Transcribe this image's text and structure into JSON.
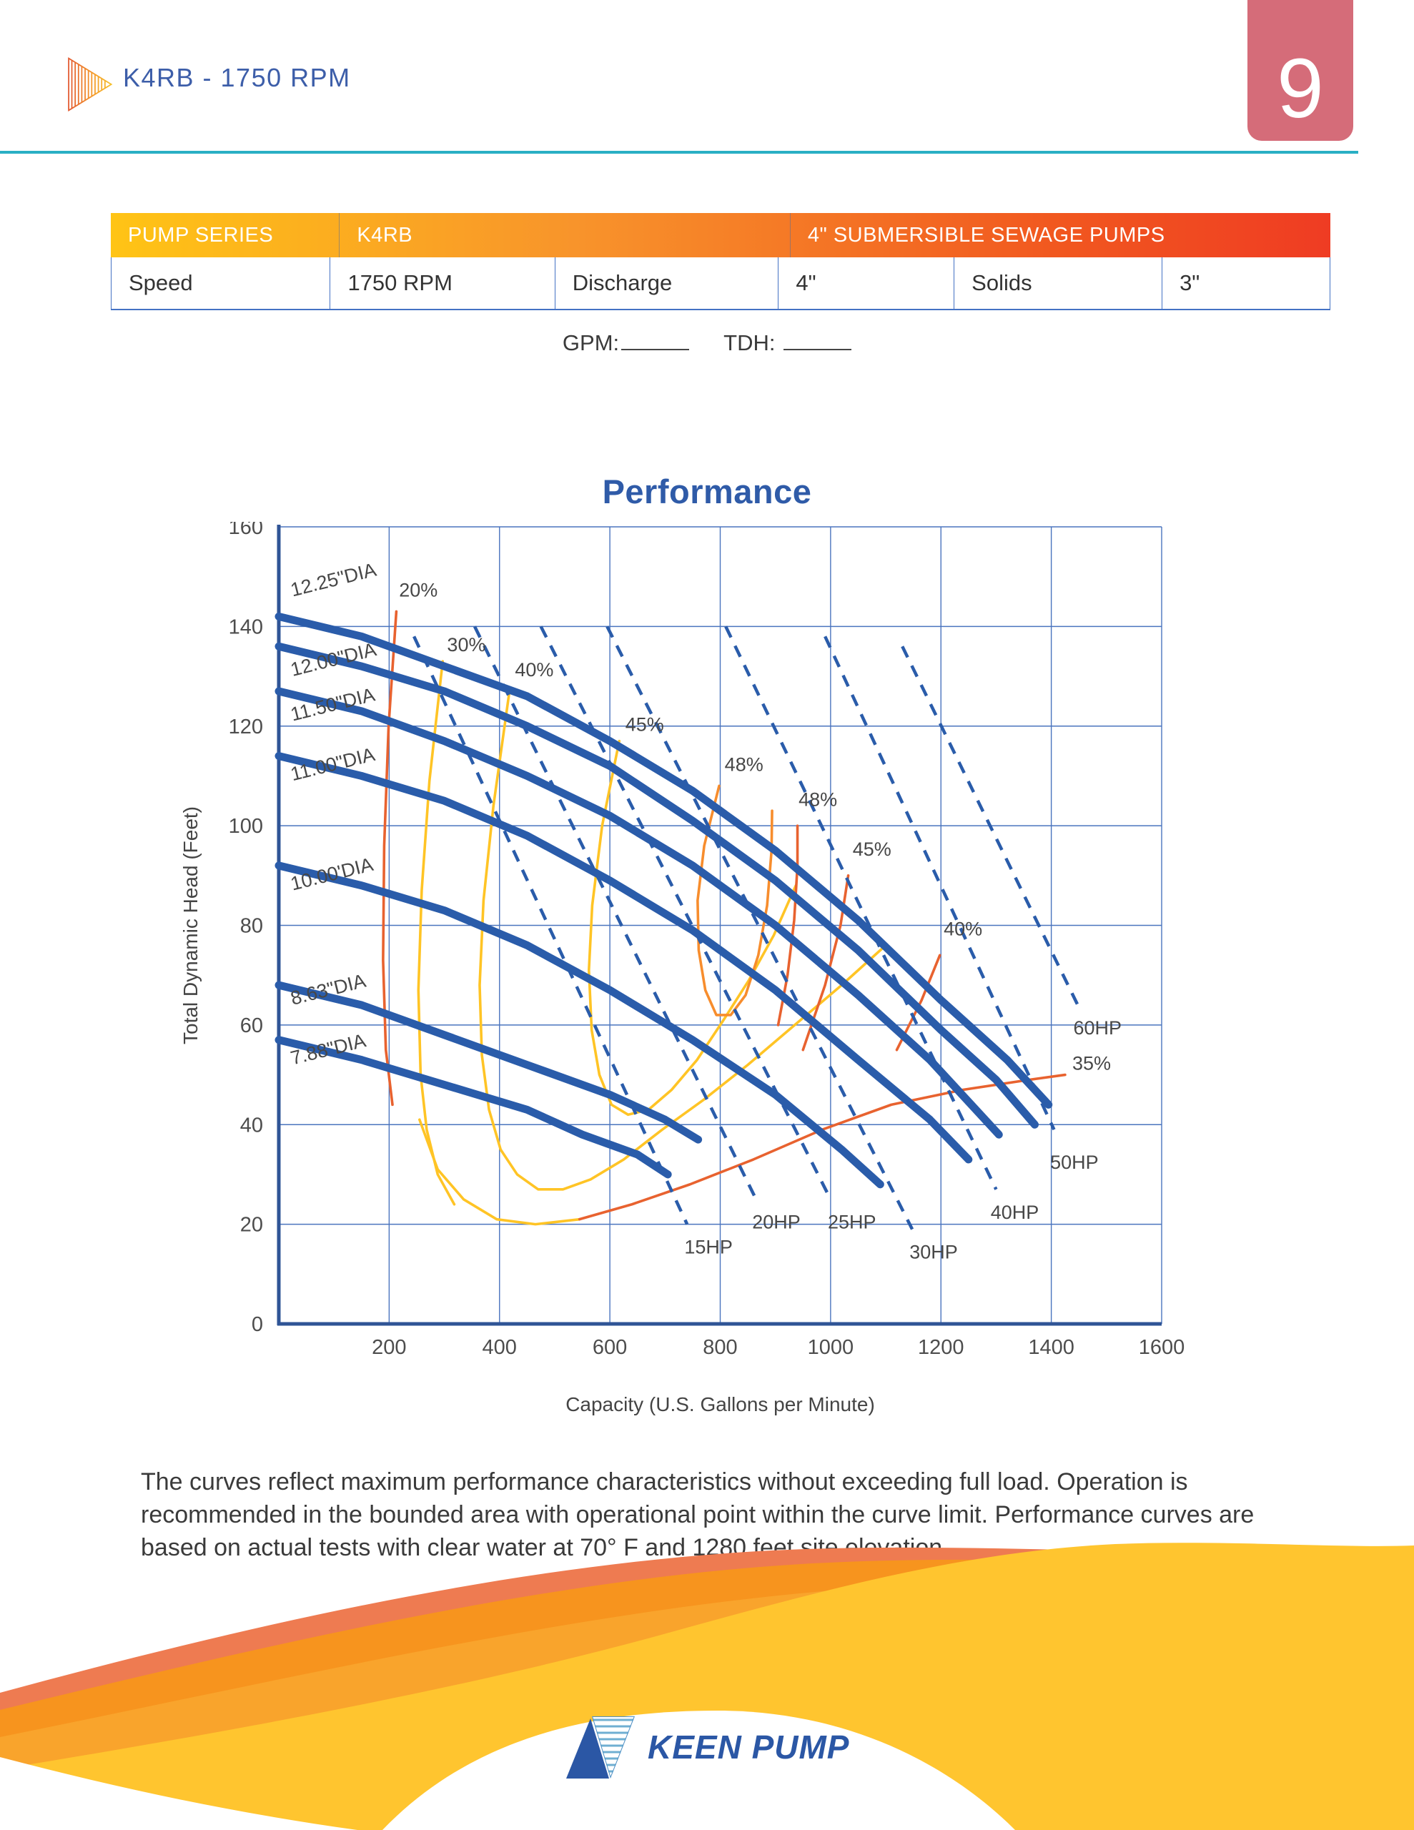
{
  "page": {
    "number": "9"
  },
  "header": {
    "title": "K4RB - 1750 RPM"
  },
  "spec_table": {
    "header_cells": [
      {
        "label": "PUMP SERIES"
      },
      {
        "label": "K4RB"
      },
      {
        "label": "4\" SUBMERSIBLE SEWAGE PUMPS"
      }
    ],
    "body_cells": [
      {
        "label": "Speed"
      },
      {
        "label": "1750 RPM"
      },
      {
        "label": "Discharge"
      },
      {
        "label": "4\""
      },
      {
        "label": "Solids"
      },
      {
        "label": "3\""
      }
    ]
  },
  "operating_point": {
    "gpm_label": "GPM:",
    "tdh_label": "TDH:"
  },
  "chart_data": {
    "type": "line",
    "title": "Performance",
    "xlabel": "Capacity (U.S. Gallons per Minute)",
    "ylabel": "Total Dynamic Head (Feet)",
    "xlim": [
      0,
      1600
    ],
    "ylim": [
      0,
      160
    ],
    "x_ticks": [
      200,
      400,
      600,
      800,
      1000,
      1200,
      1400,
      1600
    ],
    "y_ticks": [
      0,
      20,
      40,
      60,
      80,
      100,
      120,
      140,
      160
    ],
    "grid": true,
    "style": {
      "curve_color": "#2A5CAA",
      "grid_color": "#4A74BE",
      "axis_color": "#2F5496",
      "label_color": "#474747"
    },
    "pump_curves": [
      {
        "label": "12.25\"DIA",
        "label_at": [
          25,
          146
        ],
        "points": [
          [
            0,
            142
          ],
          [
            150,
            138
          ],
          [
            300,
            132
          ],
          [
            450,
            126
          ],
          [
            600,
            117
          ],
          [
            750,
            107
          ],
          [
            900,
            95
          ],
          [
            1050,
            81
          ],
          [
            1200,
            65
          ],
          [
            1320,
            53
          ],
          [
            1395,
            44
          ]
        ]
      },
      {
        "label": "12.00\"DIA",
        "label_at": [
          25,
          130
        ],
        "points": [
          [
            0,
            136
          ],
          [
            150,
            132
          ],
          [
            300,
            127
          ],
          [
            450,
            120
          ],
          [
            600,
            112
          ],
          [
            750,
            101
          ],
          [
            900,
            89
          ],
          [
            1050,
            75
          ],
          [
            1200,
            59
          ],
          [
            1300,
            49
          ],
          [
            1370,
            40
          ]
        ]
      },
      {
        "label": "11.50\"DIA",
        "label_at": [
          25,
          121
        ],
        "points": [
          [
            0,
            127
          ],
          [
            150,
            123
          ],
          [
            300,
            117
          ],
          [
            450,
            110
          ],
          [
            600,
            102
          ],
          [
            750,
            92
          ],
          [
            900,
            80
          ],
          [
            1050,
            66
          ],
          [
            1180,
            53
          ],
          [
            1305,
            38
          ]
        ]
      },
      {
        "label": "11.00\"DIA",
        "label_at": [
          25,
          109
        ],
        "points": [
          [
            0,
            114
          ],
          [
            150,
            110
          ],
          [
            300,
            105
          ],
          [
            450,
            98
          ],
          [
            600,
            89
          ],
          [
            750,
            79
          ],
          [
            900,
            67
          ],
          [
            1050,
            53
          ],
          [
            1180,
            41
          ],
          [
            1250,
            33
          ]
        ]
      },
      {
        "label": "10.00'DIA",
        "label_at": [
          25,
          87
        ],
        "points": [
          [
            0,
            92
          ],
          [
            150,
            88
          ],
          [
            300,
            83
          ],
          [
            450,
            76
          ],
          [
            600,
            67
          ],
          [
            750,
            57
          ],
          [
            900,
            46
          ],
          [
            1020,
            35
          ],
          [
            1090,
            28
          ]
        ]
      },
      {
        "label": "8.63\"DIA",
        "label_at": [
          25,
          64
        ],
        "points": [
          [
            0,
            68
          ],
          [
            150,
            64
          ],
          [
            300,
            58
          ],
          [
            450,
            52
          ],
          [
            600,
            46
          ],
          [
            700,
            41
          ],
          [
            760,
            37
          ]
        ]
      },
      {
        "label": "7.88\"DIA",
        "label_at": [
          25,
          52
        ],
        "points": [
          [
            0,
            57
          ],
          [
            150,
            53
          ],
          [
            300,
            48
          ],
          [
            450,
            43
          ],
          [
            550,
            38
          ],
          [
            650,
            34
          ],
          [
            705,
            30
          ]
        ]
      }
    ],
    "efficiency_contours": [
      {
        "label": "20%",
        "color": "#E8622F",
        "label_at": [
          218,
          146
        ],
        "points": [
          [
            213,
            143
          ],
          [
            199,
            120
          ],
          [
            191,
            96
          ],
          [
            189,
            73
          ],
          [
            194,
            55
          ],
          [
            206,
            44
          ]
        ]
      },
      {
        "label": "30%",
        "color": "#FFC425",
        "label_at": [
          305,
          135
        ],
        "points": [
          [
            297,
            133
          ],
          [
            273,
            109
          ],
          [
            259,
            87
          ],
          [
            253,
            67
          ],
          [
            257,
            50
          ],
          [
            268,
            39
          ],
          [
            288,
            30
          ],
          [
            318,
            24
          ]
        ]
      },
      {
        "label": "40%",
        "color": "#FFC425",
        "label_at": [
          428,
          130
        ],
        "points": [
          [
            418,
            127
          ],
          [
            389,
            104
          ],
          [
            371,
            85
          ],
          [
            364,
            68
          ],
          [
            368,
            54
          ],
          [
            381,
            43
          ],
          [
            402,
            35
          ],
          [
            432,
            30
          ],
          [
            470,
            27
          ],
          [
            515,
            27
          ],
          [
            565,
            29
          ],
          [
            625,
            33
          ],
          [
            695,
            39
          ],
          [
            770,
            45
          ],
          [
            850,
            52
          ],
          [
            935,
            60
          ],
          [
            1020,
            68
          ],
          [
            1100,
            76
          ]
        ]
      },
      {
        "label": "45%",
        "color": "#FFC425",
        "label_at": [
          628,
          119
        ],
        "points": [
          [
            617,
            117
          ],
          [
            586,
            100
          ],
          [
            568,
            84
          ],
          [
            562,
            71
          ],
          [
            567,
            59
          ],
          [
            581,
            50
          ],
          [
            603,
            44
          ],
          [
            633,
            42
          ],
          [
            670,
            43
          ],
          [
            712,
            47
          ],
          [
            758,
            53
          ],
          [
            806,
            61
          ],
          [
            852,
            69
          ],
          [
            897,
            78
          ],
          [
            937,
            88
          ]
        ]
      },
      {
        "label": "48%",
        "color": "#F78D2D",
        "label_at": [
          808,
          111
        ],
        "points": [
          [
            798,
            108
          ],
          [
            771,
            96
          ],
          [
            759,
            85
          ],
          [
            761,
            75
          ],
          [
            773,
            67
          ],
          [
            793,
            62
          ],
          [
            819,
            62
          ],
          [
            846,
            66
          ],
          [
            869,
            74
          ],
          [
            885,
            84
          ],
          [
            893,
            95
          ],
          [
            894,
            103
          ]
        ]
      },
      {
        "label": "48%",
        "color": "#E8622F",
        "label_at": [
          942,
          104
        ],
        "points": [
          [
            905,
            60
          ],
          [
            922,
            70
          ],
          [
            934,
            81
          ],
          [
            940,
            92
          ],
          [
            940,
            100
          ]
        ]
      },
      {
        "label": "45%",
        "color": "#E8622F",
        "label_at": [
          1040,
          94
        ],
        "points": [
          [
            950,
            55
          ],
          [
            990,
            68
          ],
          [
            1018,
            80
          ],
          [
            1032,
            90
          ]
        ]
      },
      {
        "label": "40%",
        "color": "#E8622F",
        "label_at": [
          1205,
          78
        ],
        "points": [
          [
            1120,
            55
          ],
          [
            1165,
            65
          ],
          [
            1198,
            74
          ]
        ]
      },
      {
        "label": "35%",
        "color": "#FFC425",
        "label_at": null,
        "points": [
          [
            255,
            41
          ],
          [
            288,
            31
          ],
          [
            335,
            25
          ],
          [
            395,
            21
          ],
          [
            465,
            20
          ],
          [
            545,
            21
          ]
        ]
      },
      {
        "label": "35%",
        "color": "#E8622F",
        "label_at": [
          1438,
          51
        ],
        "points": [
          [
            545,
            21
          ],
          [
            640,
            24
          ],
          [
            745,
            28
          ],
          [
            860,
            33
          ],
          [
            985,
            39
          ],
          [
            1110,
            44
          ],
          [
            1240,
            47
          ],
          [
            1360,
            49
          ],
          [
            1425,
            50
          ]
        ]
      }
    ],
    "power_lines": [
      {
        "label": "15HP",
        "label_at": [
          735,
          18
        ],
        "points": [
          [
            245,
            138
          ],
          [
            740,
            20
          ]
        ]
      },
      {
        "label": "20HP",
        "label_at": [
          858,
          23
        ],
        "points": [
          [
            355,
            140
          ],
          [
            865,
            25
          ]
        ]
      },
      {
        "label": "25HP",
        "label_at": [
          995,
          23
        ],
        "points": [
          [
            475,
            140
          ],
          [
            1000,
            25
          ]
        ]
      },
      {
        "label": "30HP",
        "label_at": [
          1143,
          17
        ],
        "points": [
          [
            595,
            140
          ],
          [
            1148,
            19
          ]
        ]
      },
      {
        "label": "40HP",
        "label_at": [
          1290,
          25
        ],
        "points": [
          [
            810,
            140
          ],
          [
            1300,
            27
          ]
        ]
      },
      {
        "label": "50HP",
        "label_at": [
          1398,
          35
        ],
        "points": [
          [
            990,
            138
          ],
          [
            1405,
            39
          ]
        ]
      },
      {
        "label": "60HP",
        "label_at": [
          1440,
          62
        ],
        "points": [
          [
            1130,
            136
          ],
          [
            1448,
            64
          ]
        ]
      }
    ]
  },
  "footnote": {
    "text": "The curves reflect maximum performance characteristics without exceeding full load. Operation is recommended in the bounded area with operational point within the curve limit. Performance curves are based on actual tests with clear water at 70° F and 1280 feet site elevation."
  },
  "footer": {
    "logo_text": "KEEN PUMP"
  },
  "colors": {
    "accent_blue": "#2A5CAA",
    "title_blue": "#2F5BA8",
    "header_text_blue": "#3D5EA9",
    "badge_rose": "#D56C79",
    "teal_rule": "#2AAFC4",
    "table_gradient": [
      "#FFC415",
      "#F8942B",
      "#EF3C23"
    ],
    "grid_blue": "#4A74BE",
    "contour_yellow": "#FFC425",
    "contour_orange": "#F78D2D",
    "contour_red": "#E8622F",
    "wave_salmon": "#EE7B51",
    "wave_orange": "#F7941E",
    "wave_yellow": "#FFC52F"
  }
}
